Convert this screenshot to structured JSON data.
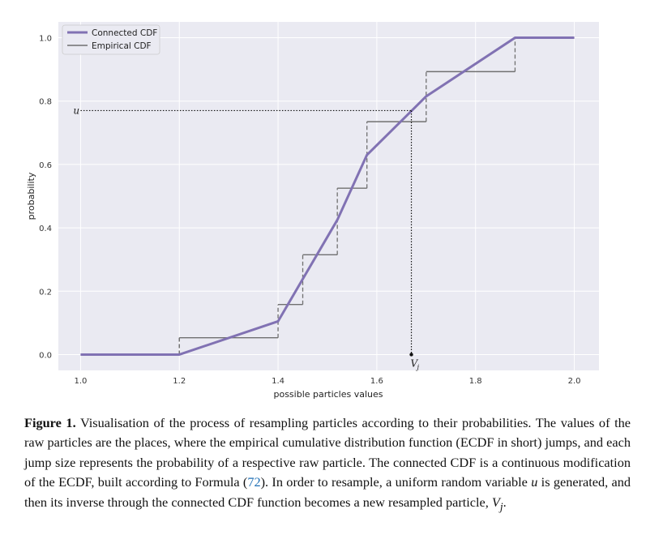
{
  "chart_data": {
    "type": "line",
    "xlabel": "possible particles values",
    "ylabel": "probability",
    "xlim": [
      0.955,
      2.05
    ],
    "ylim": [
      -0.05,
      1.05
    ],
    "xticks": [
      "1.0",
      "1.2",
      "1.4",
      "1.6",
      "1.8",
      "2.0"
    ],
    "xtick_values": [
      1.0,
      1.2,
      1.4,
      1.6,
      1.8,
      2.0
    ],
    "yticks": [
      "0.0",
      "0.2",
      "0.4",
      "0.6",
      "0.8",
      "1.0"
    ],
    "ytick_values": [
      0.0,
      0.2,
      0.4,
      0.6,
      0.8,
      1.0
    ],
    "grid": true,
    "legend_position": "top-left",
    "background": "#eaeaf2",
    "series": [
      {
        "name": "Connected CDF",
        "color": "#8172b3",
        "x": [
          1.0,
          1.2,
          1.4,
          1.52,
          1.58,
          1.7,
          1.88,
          2.0
        ],
        "y": [
          0.0,
          0.0,
          0.105,
          0.425,
          0.63,
          0.815,
          1.0,
          1.0
        ]
      },
      {
        "name": "Empirical CDF",
        "color": "#707070",
        "step": true,
        "x": [
          1.0,
          1.2,
          1.4,
          1.45,
          1.52,
          1.58,
          1.7,
          1.88,
          2.0
        ],
        "y": [
          0.0,
          0.053,
          0.158,
          0.315,
          0.525,
          0.735,
          0.893,
          1.0,
          1.0
        ],
        "visible_from_x": 1.2
      }
    ],
    "annotations": {
      "u_value": 0.77,
      "v_value": 1.67,
      "u_label": "u",
      "v_label": "V",
      "v_subscript": "j"
    }
  },
  "caption": {
    "label": "Figure 1.",
    "part1": " Visualisation of the process of resampling particles according to their probabilities. The values of the raw particles are the places, where the empirical cumulative distribution function (ECDF in short) jumps, and each jump size represents the probability of a respective raw particle. The connected CDF is a continuous modification of the ECDF, built according to Formula (",
    "ref": "72",
    "part2": "). In order to resample, a uniform random variable ",
    "u": "u",
    "part3": " is generated, and then its inverse through the connected CDF function becomes a new resampled particle, ",
    "v": "V",
    "v_sub": "j",
    "part4": "."
  }
}
